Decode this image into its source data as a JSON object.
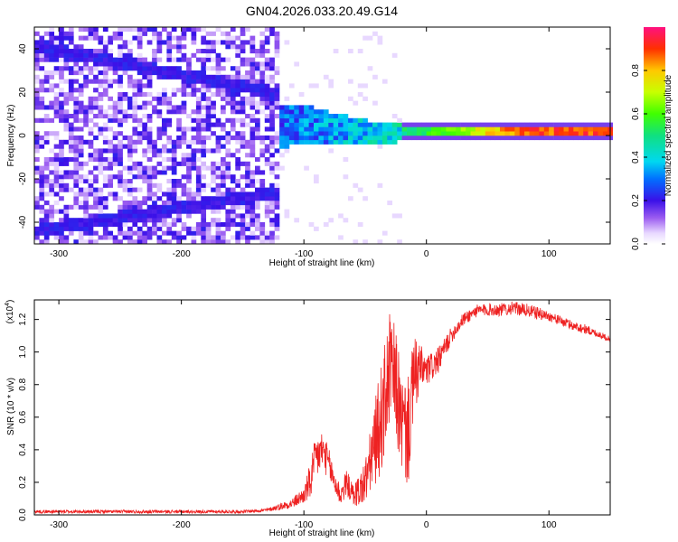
{
  "title": "GN04.2026.033.20.49.G14",
  "chart_data": [
    {
      "type": "heatmap",
      "xlabel": "Height of straight line (km)",
      "ylabel": "Frequency (Hz)",
      "xlim": [
        -320,
        150
      ],
      "ylim": [
        -50,
        50
      ],
      "x_ticks": [
        -300,
        -200,
        -100,
        0,
        100
      ],
      "x_tick_labels": [
        "-300",
        "-200",
        "-100",
        "0",
        "100"
      ],
      "y_ticks": [
        -40,
        -20,
        0,
        20,
        40
      ],
      "y_tick_labels": [
        "-40",
        "-20",
        "0",
        "20",
        "40"
      ],
      "description_points": [
        {
          "height": -300,
          "freq_center": 0,
          "amplitude": 0.2
        },
        {
          "height": -100,
          "freq_center": 4,
          "amplitude": 0.35
        },
        {
          "height": -50,
          "freq_center": 0,
          "amplitude": 0.45
        },
        {
          "height": 0,
          "freq_center": 1,
          "amplitude": 0.6
        },
        {
          "height": 75,
          "freq_center": 1,
          "amplitude": 0.95
        },
        {
          "height": 150,
          "freq_center": 1,
          "amplitude": 0.95
        }
      ],
      "colorbar": {
        "label": "Normalized spectral amplitude",
        "range": [
          0,
          1
        ],
        "ticks": [
          0.0,
          0.2,
          0.4,
          0.6,
          0.8
        ],
        "tick_labels": [
          "0.0",
          "0.2",
          "0.4",
          "0.6",
          "0.8"
        ]
      }
    },
    {
      "type": "line",
      "xlabel": "Height of straight line (km)",
      "ylabel": "SNR (10 * v/v)",
      "y_multiplier": "(x10",
      "y_multiplier_exp": "4",
      "y_multiplier_close": ")",
      "xlim": [
        -320,
        150
      ],
      "ylim": [
        0,
        1.32
      ],
      "x_ticks": [
        -300,
        -200,
        -100,
        0,
        100
      ],
      "x_tick_labels": [
        "-300",
        "-200",
        "-100",
        "0",
        "100"
      ],
      "y_ticks": [
        0.0,
        0.2,
        0.4,
        0.6,
        0.8,
        1.0,
        1.2
      ],
      "y_tick_labels": [
        "0.0",
        "0.2",
        "0.4",
        "0.6",
        "0.8",
        "1.0",
        "1.2"
      ],
      "color": "#ee2222",
      "x": [
        -320,
        -150,
        -130,
        -110,
        -100,
        -95,
        -90,
        -85,
        -80,
        -75,
        -70,
        -65,
        -60,
        -55,
        -50,
        -45,
        -40,
        -35,
        -30,
        -25,
        -20,
        -15,
        -10,
        -5,
        0,
        10,
        20,
        30,
        40,
        50,
        60,
        70,
        80,
        90,
        100,
        110,
        120,
        130,
        140,
        150
      ],
      "y": [
        0.02,
        0.02,
        0.03,
        0.07,
        0.12,
        0.2,
        0.35,
        0.4,
        0.32,
        0.2,
        0.12,
        0.2,
        0.12,
        0.15,
        0.2,
        0.35,
        0.5,
        0.65,
        0.9,
        0.8,
        0.55,
        0.5,
        0.85,
        0.9,
        0.88,
        0.95,
        1.1,
        1.2,
        1.25,
        1.26,
        1.26,
        1.27,
        1.26,
        1.24,
        1.22,
        1.19,
        1.16,
        1.14,
        1.11,
        1.08
      ],
      "noise": [
        0.01,
        0.01,
        0.01,
        0.03,
        0.05,
        0.12,
        0.15,
        0.12,
        0.1,
        0.08,
        0.07,
        0.08,
        0.07,
        0.1,
        0.15,
        0.2,
        0.3,
        0.35,
        0.35,
        0.35,
        0.3,
        0.35,
        0.25,
        0.15,
        0.1,
        0.08,
        0.05,
        0.04,
        0.04,
        0.04,
        0.04,
        0.04,
        0.04,
        0.04,
        0.03,
        0.03,
        0.03,
        0.03,
        0.02,
        0.02
      ]
    }
  ]
}
